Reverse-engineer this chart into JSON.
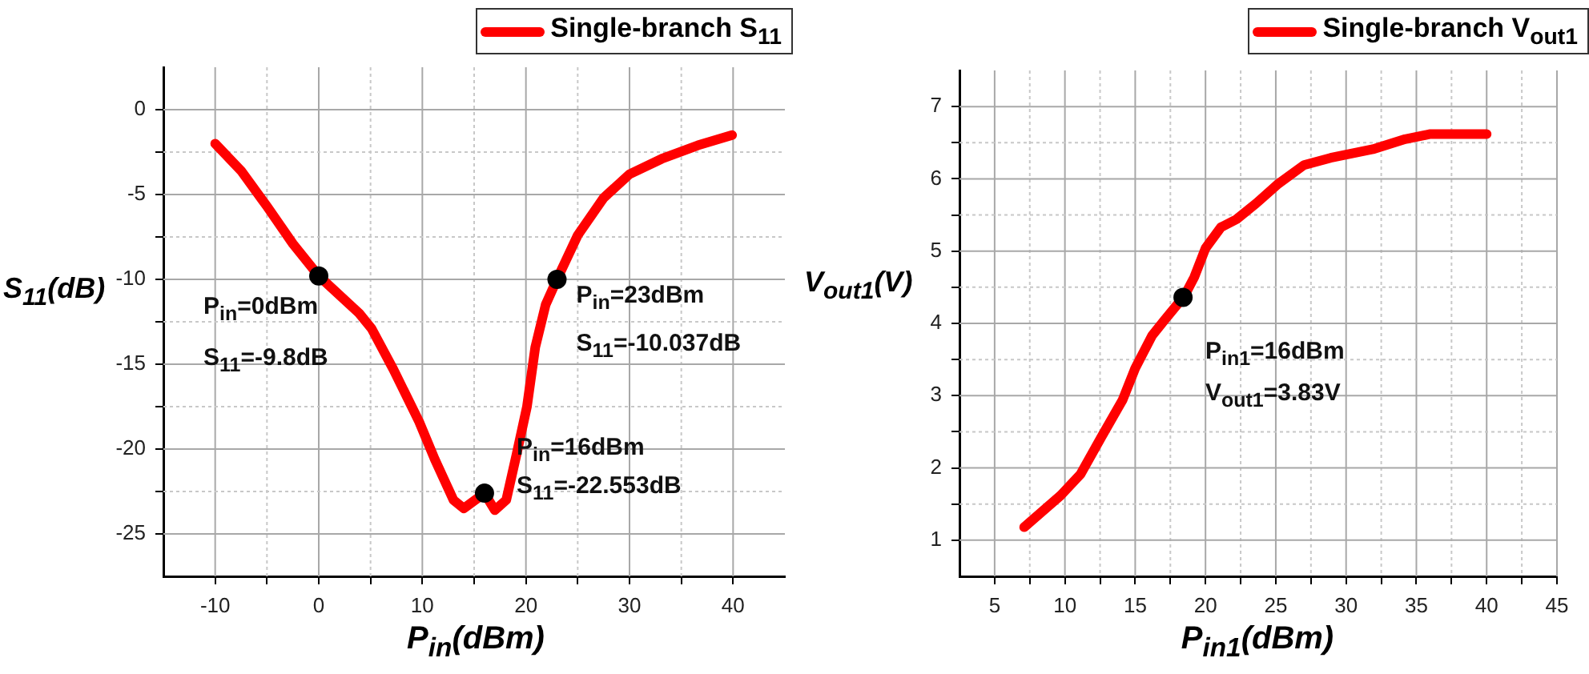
{
  "chart_data": [
    {
      "type": "line",
      "xlabel": "P$_{in}$(dBm)",
      "ylabel": "S$_{11}$(dB)",
      "legend": "top right",
      "grid": true,
      "line_style": "solid",
      "marker": "none",
      "xlim": [
        -15,
        45
      ],
      "xticks": [
        -10,
        {
          "value": -5,
          "label": null
        },
        0,
        {
          "value": 5,
          "label": null
        },
        10,
        {
          "value": 15,
          "label": null
        },
        20,
        {
          "value": 25,
          "label": null
        },
        30,
        {
          "value": 35,
          "label": null
        },
        40
      ],
      "ylim": [
        -27.5,
        2.5
      ],
      "yticks": [
        0,
        {
          "value": -2.5,
          "label": null
        },
        -5,
        {
          "value": -7.5,
          "label": null
        },
        -10,
        {
          "value": -12.5,
          "label": null
        },
        -15,
        {
          "value": -17.5,
          "label": null
        },
        -20,
        {
          "value": -22.5,
          "label": null
        },
        -25
      ],
      "series": [
        {
          "name": "Single-branch S$_{11}$",
          "color": "#ff0000",
          "x": [
            -10,
            -7.5,
            -5,
            -2.5,
            0,
            3.9,
            5.1,
            7.2,
            9.7,
            11.2,
            13.0,
            14.0,
            16,
            17.0,
            18.1,
            19.1,
            20.1,
            20.9,
            21.9,
            23,
            25.0,
            27.5,
            30.0,
            33.1,
            36.6,
            39.9
          ],
          "values": [
            -2.0,
            -3.6,
            -5.7,
            -7.9,
            -9.8,
            -12.0,
            -12.9,
            -15.3,
            -18.4,
            -20.6,
            -23.0,
            -23.5,
            -22.6,
            -23.6,
            -23.0,
            -20.3,
            -17.5,
            -14.0,
            -11.5,
            -10.0,
            -7.4,
            -5.2,
            -3.8,
            -2.9,
            -2.1,
            -1.5
          ]
        },
        {
          "type": "scatter",
          "color": "#000000",
          "marker": "circle",
          "x": [
            0,
            16,
            23
          ],
          "values": [
            -9.8,
            -22.6,
            -10.0
          ]
        }
      ],
      "annotations": [
        {
          "text": "P$_{in}$=0dBm",
          "x": 0,
          "y": -9.8
        },
        {
          "text": "S$_{11}$=-9.8dB",
          "x": 0,
          "y": -9.8
        },
        {
          "text": "P$_{in}$=16dBm",
          "x": 16,
          "y": -22.6
        },
        {
          "text": "S$_{11}$=-22.553dB",
          "x": 16,
          "y": -22.6
        },
        {
          "text": "P$_{in}$=23dBm",
          "x": 23,
          "y": -10.0
        },
        {
          "text": "S$_{11}$=-10.037dB",
          "x": 23,
          "y": -10.0
        }
      ]
    },
    {
      "type": "line",
      "xlabel": "P$_{in1}$(dBm)",
      "ylabel": "V$_{out1}$(V)",
      "legend": "top right",
      "grid": true,
      "line_style": "solid",
      "marker": "none",
      "xlim": [
        2.5,
        45
      ],
      "xticks": [
        5,
        {
          "value": 7.5,
          "label": null
        },
        10,
        {
          "value": 12.5,
          "label": null
        },
        15,
        {
          "value": 17.5,
          "label": null
        },
        20,
        {
          "value": 22.5,
          "label": null
        },
        25,
        {
          "value": 27.5,
          "label": null
        },
        30,
        {
          "value": 32.5,
          "label": null
        },
        35,
        {
          "value": 37.5,
          "label": null
        },
        40,
        {
          "value": 42.5,
          "label": null
        },
        45
      ],
      "ylim": [
        0.5,
        7.5
      ],
      "yticks": [
        1,
        {
          "value": 1.5,
          "label": null
        },
        2,
        {
          "value": 2.5,
          "label": null
        },
        3,
        {
          "value": 3.5,
          "label": null
        },
        4,
        {
          "value": 4.5,
          "label": null
        },
        5,
        {
          "value": 5.5,
          "label": null
        },
        6,
        {
          "value": 6.5,
          "label": null
        },
        7
      ],
      "series": [
        {
          "name": "Single-branch V$_{out1}$",
          "color": "#ff0000",
          "x": [
            7.1,
            9.7,
            11.1,
            12.6,
            14.1,
            15.0,
            16.2,
            17.1,
            18.5,
            19.2,
            20.0,
            21.1,
            22.2,
            23.6,
            25.1,
            27.0,
            28.9,
            31.9,
            34.2,
            36.0,
            40.0
          ],
          "values": [
            1.18,
            1.62,
            1.91,
            2.43,
            2.94,
            3.38,
            3.83,
            4.05,
            4.38,
            4.64,
            5.04,
            5.33,
            5.44,
            5.66,
            5.92,
            6.19,
            6.29,
            6.41,
            6.55,
            6.62,
            6.62
          ]
        },
        {
          "type": "scatter",
          "color": "#000000",
          "marker": "circle",
          "x": [
            18.4
          ],
          "values": [
            4.36
          ]
        }
      ],
      "annotations": [
        {
          "text": "P$_{in1}$=16dBm",
          "x": 16,
          "y": 3.83
        },
        {
          "text": "V$_{out1}$=3.83V",
          "x": 16,
          "y": 3.83
        }
      ]
    }
  ]
}
